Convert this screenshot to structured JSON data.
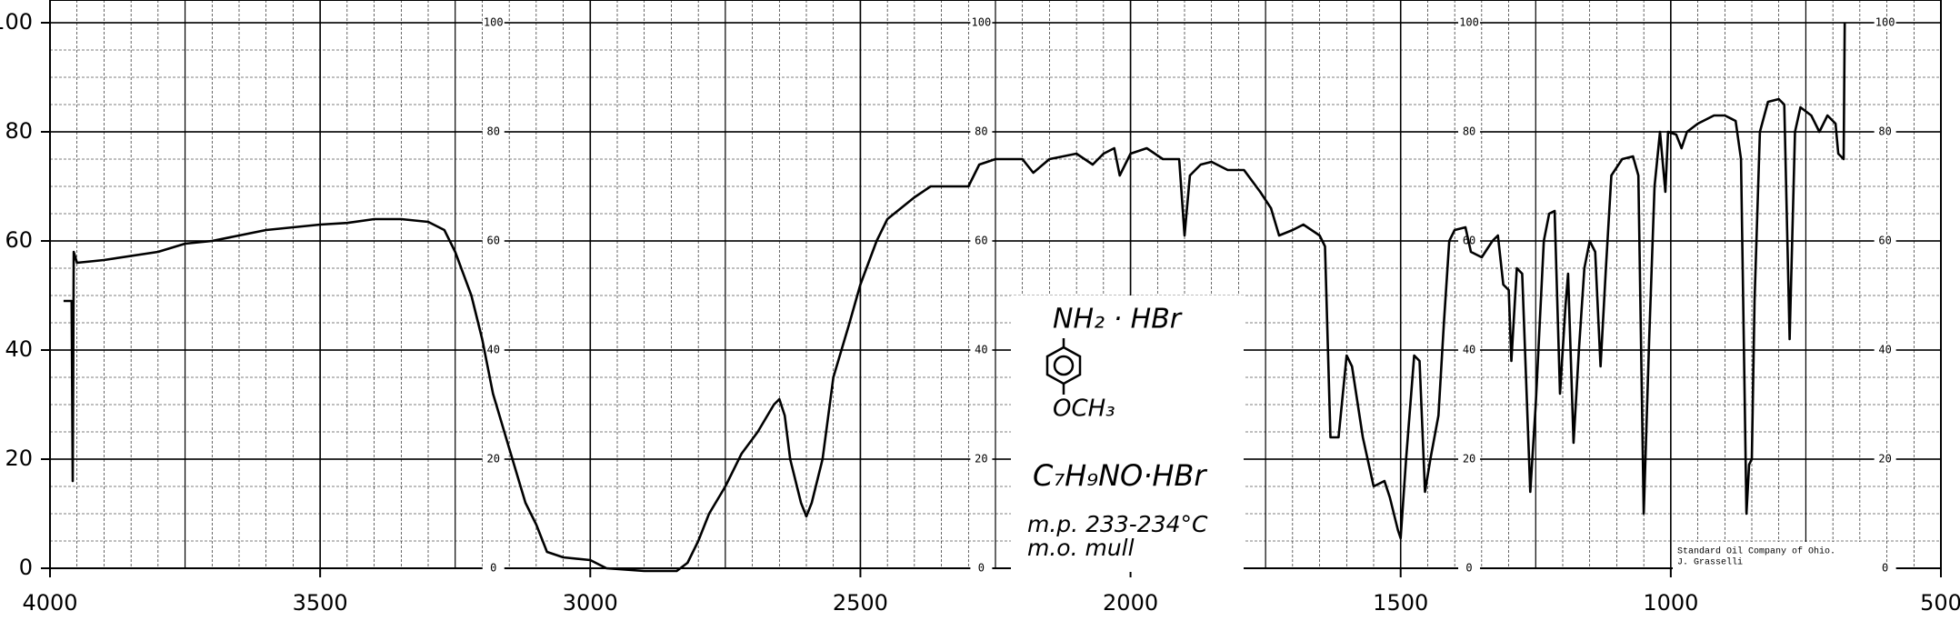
{
  "chart_data": {
    "type": "line",
    "xlim": [
      4000,
      500
    ],
    "ylim": [
      0,
      100
    ],
    "xticks": [
      4000,
      3500,
      3000,
      2500,
      2000,
      1500,
      1000,
      500
    ],
    "yticks": [
      0,
      20,
      40,
      60,
      80,
      100
    ],
    "grid": true,
    "paper_scale_labels": [
      100,
      80,
      60,
      40,
      20,
      0
    ],
    "annotations": [
      "NH₂ · HBr",
      "OCH₃",
      "C₇H₉NO·HBr",
      "m.p. 233-234°C",
      "m.o. mull",
      "Standard Oil Company of Ohio.",
      "J. Grasselli"
    ],
    "series": [
      {
        "color": "#000000",
        "x": [
          3975,
          3960,
          3958,
          3956,
          3950,
          3900,
          3800,
          3750,
          3700,
          3650,
          3600,
          3500,
          3450,
          3400,
          3350,
          3300,
          3270,
          3250,
          3220,
          3200,
          3180,
          3150,
          3120,
          3100,
          3080,
          3050,
          3000,
          2970,
          2900,
          2840,
          2820,
          2800,
          2780,
          2750,
          2720,
          2690,
          2660,
          2650,
          2640,
          2630,
          2610,
          2600,
          2590,
          2570,
          2550,
          2520,
          2500,
          2470,
          2450,
          2400,
          2370,
          2300,
          2280,
          2250,
          2200,
          2180,
          2150,
          2100,
          2070,
          2050,
          2030,
          2020,
          2000,
          1970,
          1940,
          1910,
          1900,
          1890,
          1870,
          1850,
          1820,
          1790,
          1760,
          1740,
          1725,
          1700,
          1680,
          1650,
          1640,
          1630,
          1615,
          1600,
          1590,
          1570,
          1550,
          1530,
          1520,
          1505,
          1500,
          1490,
          1475,
          1465,
          1455,
          1445,
          1430,
          1420,
          1410,
          1400,
          1380,
          1370,
          1350,
          1330,
          1320,
          1310,
          1300,
          1295,
          1285,
          1275,
          1260,
          1250,
          1235,
          1225,
          1215,
          1205,
          1195,
          1190,
          1180,
          1170,
          1160,
          1150,
          1140,
          1130,
          1120,
          1110,
          1090,
          1070,
          1060,
          1050,
          1040,
          1030,
          1020,
          1010,
          1005,
          990,
          980,
          970,
          950,
          920,
          900,
          880,
          870,
          860,
          855,
          850,
          845,
          835,
          820,
          800,
          790,
          780,
          770,
          760,
          740,
          725,
          710,
          695,
          690,
          680,
          678
        ],
        "values": [
          49,
          49,
          16,
          58,
          56,
          56.5,
          58,
          59.5,
          60,
          61,
          62,
          63,
          63.3,
          64,
          64,
          63.5,
          62,
          58,
          50,
          42,
          32,
          22,
          12,
          8,
          3,
          2,
          1.5,
          0,
          -0.5,
          -0.5,
          1,
          5,
          10,
          15,
          21,
          25,
          30,
          31,
          28,
          20,
          12,
          9.5,
          12,
          20,
          35,
          45,
          52,
          60,
          64,
          68,
          70,
          70,
          74,
          75,
          75,
          72.5,
          75,
          76,
          74,
          76,
          77,
          72,
          76,
          77,
          75,
          75,
          61,
          72,
          74,
          74.5,
          73,
          73,
          69,
          66,
          61,
          62,
          63,
          61,
          59,
          24,
          24,
          39,
          37,
          24,
          15,
          16,
          13,
          7,
          5.5,
          20,
          39,
          38,
          14,
          20,
          28,
          45,
          60,
          62,
          62.5,
          58,
          57,
          60,
          61,
          52,
          51,
          38,
          55,
          54,
          14,
          30,
          60,
          65,
          65.5,
          32,
          48,
          54,
          23,
          40,
          55,
          60,
          58,
          37,
          55,
          72,
          75,
          75.5,
          72,
          10,
          42,
          70,
          80,
          69,
          80,
          79.5,
          77,
          80,
          81.5,
          83,
          83,
          82,
          75,
          10,
          19,
          20,
          49,
          80,
          85.5,
          86,
          85,
          42,
          80,
          84.5,
          83,
          80,
          83,
          81.5,
          76,
          75,
          100
        ]
      }
    ]
  }
}
